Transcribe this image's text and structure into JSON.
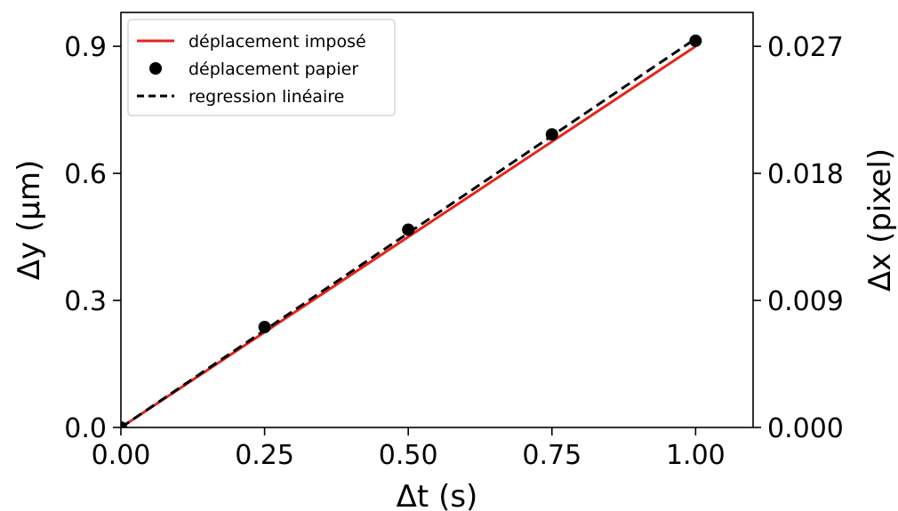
{
  "chart_data": {
    "type": "line",
    "xlabel": "Δt (s)",
    "ylabel": "Δy (μm)",
    "y2label": "Δx (pixel)",
    "xlim": [
      0,
      1.1
    ],
    "ylim": [
      0,
      0.98
    ],
    "y2lim": [
      0,
      0.0294
    ],
    "xticks": [
      0,
      0.25,
      0.5,
      0.75,
      1.0
    ],
    "xtick_labels": [
      "0.00",
      "0.25",
      "0.50",
      "0.75",
      "1.00"
    ],
    "yticks": [
      0,
      0.3,
      0.6,
      0.9
    ],
    "ytick_labels": [
      "0.0",
      "0.3",
      "0.6",
      "0.9"
    ],
    "y2ticks": [
      0,
      0.009,
      0.018,
      0.027
    ],
    "y2tick_labels": [
      "0.000",
      "0.009",
      "0.018",
      "0.027"
    ],
    "grid": false,
    "legend_position": "top-left",
    "series": [
      {
        "name": "déplacement imposé",
        "kind": "line",
        "style": "solid",
        "color": "#e8231c",
        "x": [
          0,
          1.0
        ],
        "y": [
          0,
          0.9
        ]
      },
      {
        "name": "déplacement papier",
        "kind": "scatter",
        "color": "#000000",
        "x": [
          0,
          0.25,
          0.5,
          0.75,
          1.0
        ],
        "y": [
          0.0,
          0.237,
          0.467,
          0.692,
          0.913
        ]
      },
      {
        "name": "regression linéaire",
        "kind": "line",
        "style": "dashed",
        "color": "#000000",
        "x": [
          0,
          1.0
        ],
        "y": [
          0,
          0.918
        ]
      }
    ]
  }
}
